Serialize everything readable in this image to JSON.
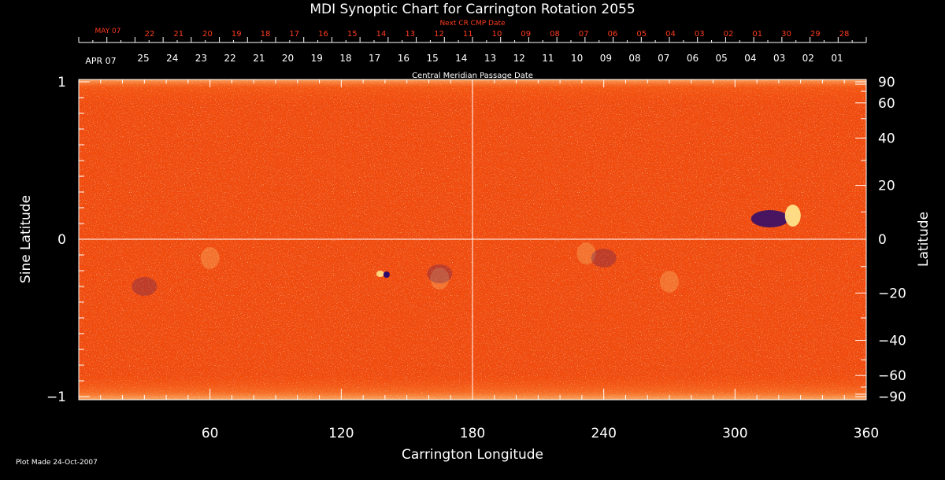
{
  "chart_data": {
    "type": "heatmap",
    "title": "MDI Synoptic Chart for Carrington Rotation 2055",
    "xlabel": "Carrington Longitude",
    "ylabel_left": "Sine Latitude",
    "ylabel_right": "Latitude",
    "xlim": [
      0,
      360
    ],
    "ylim": [
      -1,
      1
    ],
    "x_ticks": [
      60,
      120,
      180,
      240,
      300,
      360
    ],
    "y_ticks_left": [
      {
        "value": 1,
        "label": "1"
      },
      {
        "value": 0,
        "label": "0"
      },
      {
        "value": -1,
        "label": "−1"
      }
    ],
    "y_ticks_right_latitude": [
      {
        "lat": 90,
        "label": "90"
      },
      {
        "lat": 60,
        "label": "60"
      },
      {
        "lat": 40,
        "label": "40"
      },
      {
        "lat": 20,
        "label": "20"
      },
      {
        "lat": 0,
        "label": "0"
      },
      {
        "lat": -20,
        "label": "−20"
      },
      {
        "lat": -40,
        "label": "−40"
      },
      {
        "lat": -60,
        "label": "−60"
      },
      {
        "lat": -90,
        "label": "−90"
      }
    ],
    "top_axis_label": "Central Meridian Passage Date",
    "top_axis_month": "APR 07",
    "top_axis_days": [
      "25",
      "24",
      "23",
      "22",
      "21",
      "20",
      "19",
      "18",
      "17",
      "16",
      "15",
      "14",
      "13",
      "12",
      "11",
      "10",
      "09",
      "08",
      "07",
      "06",
      "05",
      "04",
      "03",
      "02",
      "01"
    ],
    "next_axis_label": "Next CR CMP Date",
    "next_axis_month": "MAY 07",
    "next_axis_days": [
      "22",
      "21",
      "20",
      "19",
      "18",
      "17",
      "16",
      "15",
      "14",
      "13",
      "12",
      "11",
      "10",
      "09",
      "08",
      "07",
      "06",
      "05",
      "04",
      "03",
      "02",
      "01",
      "30",
      "29",
      "28"
    ],
    "features": [
      {
        "name": "active region",
        "longitude": 325,
        "sine_latitude": 0.13
      },
      {
        "name": "dark spot",
        "longitude": 140,
        "sine_latitude": -0.22
      }
    ],
    "grid": "lines at longitude 180 and sine latitude 0",
    "colors": {
      "background": "#000000",
      "field_base": "#ff5a10",
      "negative": "#2a0a6e",
      "positive": "#ffe38a",
      "next_axis_text": "#ff3b1f"
    }
  },
  "footer": {
    "plot_made": "Plot Made 24-Oct-2007"
  }
}
